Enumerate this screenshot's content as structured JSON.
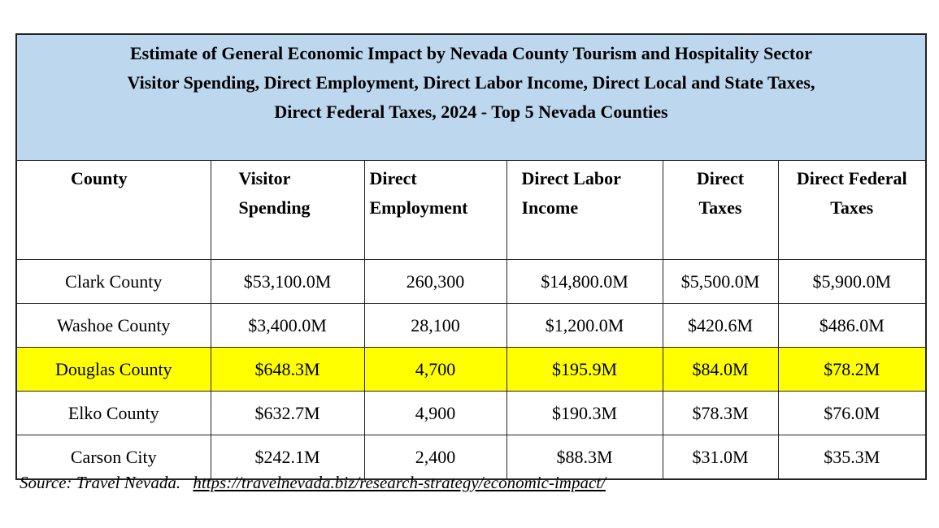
{
  "title_lines": [
    "Estimate of General Economic Impact by Nevada County Tourism and Hospitality Sector",
    "Visitor Spending, Direct Employment, Direct Labor Income, Direct Local and State Taxes,",
    "Direct Federal Taxes, 2024 - Top 5 Nevada Counties"
  ],
  "columns": [
    [
      "County"
    ],
    [
      "Visitor",
      "Spending"
    ],
    [
      "Direct",
      "Employment"
    ],
    [
      "Direct Labor",
      "Income"
    ],
    [
      "Direct",
      "Taxes"
    ],
    [
      "Direct Federal",
      "Taxes"
    ]
  ],
  "rows": [
    [
      "Clark County",
      "$53,100.0M",
      "260,300",
      "$14,800.0M",
      "$5,500.0M",
      "$5,900.0M"
    ],
    [
      "Washoe County",
      "$3,400.0M",
      "28,100",
      "$1,200.0M",
      "$420.6M",
      "$486.0M"
    ],
    [
      "Douglas County",
      "$648.3M",
      "4,700",
      "$195.9M",
      "$84.0M",
      "$78.2M"
    ],
    [
      "Elko County",
      "$632.7M",
      "4,900",
      "$190.3M",
      "$78.3M",
      "$76.0M"
    ],
    [
      "Carson City",
      "$242.1M",
      "2,400",
      "$88.3M",
      "$31.0M",
      "$35.3M"
    ]
  ],
  "highlighted_row": "Douglas County",
  "colors": {
    "title_bg": "#BDD7EE",
    "highlight": "#FFFF00"
  },
  "source": {
    "label": "Source: Travel Nevada.",
    "link": "https://travelnevada.biz/research-strategy/economic-impact/"
  }
}
